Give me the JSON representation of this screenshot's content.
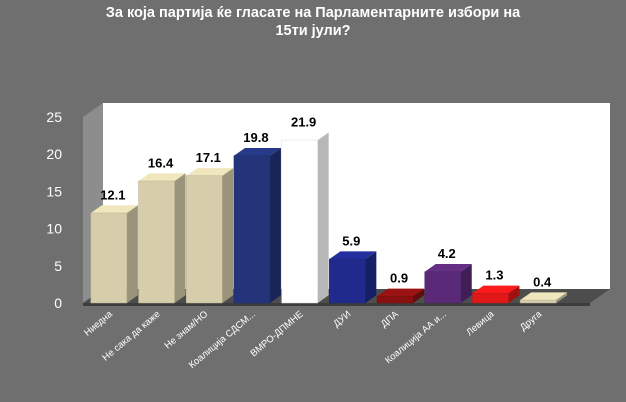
{
  "chart_data": {
    "type": "bar",
    "title_lines": [
      "За која партија ќе гласате на Парламентарните избори на",
      "15ти јули?"
    ],
    "categories": [
      "Ниедна",
      "Не сака да каже",
      "Не знам/НО",
      "Коалиција СДСМ...",
      "ВМРО-ДПМНЕ",
      "ДУИ",
      "ДПА",
      "Коалиција АА и...",
      "Левица",
      "Друга"
    ],
    "values": [
      12.1,
      16.4,
      17.1,
      19.8,
      21.9,
      5.9,
      0.9,
      4.2,
      1.3,
      0.4
    ],
    "value_labels": [
      "12.1",
      "16.4",
      "17.1",
      "19.8",
      "21.9",
      "5.9",
      "0.9",
      "4.2",
      "1.3",
      "0.4"
    ],
    "bar_colors": [
      "#d6ceaa",
      "#d6ceaa",
      "#d6ceaa",
      "#23347a",
      "#ffffff",
      "#1f2a8c",
      "#8a1010",
      "#5a2a78",
      "#e01818",
      "#d6ceaa"
    ],
    "ylim": [
      0,
      25
    ],
    "yticks": [
      "0",
      "5",
      "10",
      "15",
      "20",
      "25"
    ],
    "xlabel": "",
    "ylabel": "",
    "style": "3d-bar",
    "grid": false,
    "legend": "none",
    "colors": {
      "background": "#6f6f6f",
      "wall": "#ffffff",
      "floor": "#4d4d4d",
      "text": "#ffffff",
      "value_label": "#000000"
    }
  }
}
